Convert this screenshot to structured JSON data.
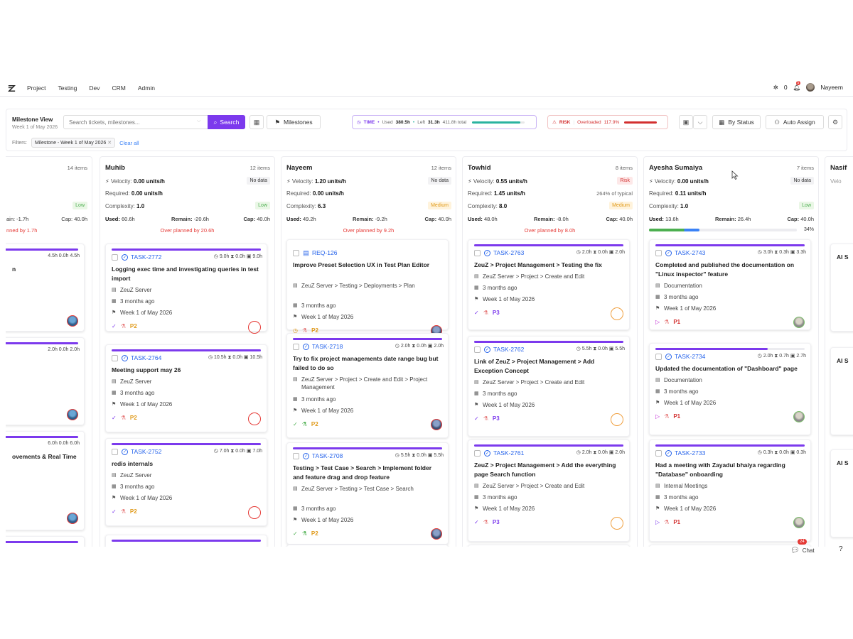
{
  "nav": {
    "menu": [
      "Project",
      "Testing",
      "Dev",
      "CRM",
      "Admin"
    ],
    "notif_count": "0",
    "bell_badge": "5",
    "user": "Nayeem"
  },
  "toolbar": {
    "title": "Milestone View",
    "subtitle": "Week 1 of May 2026",
    "search_placeholder": "Search tickets, milestones...",
    "search_label": "Search",
    "milestones_label": "Milestones",
    "time": {
      "tag": "TIME",
      "used_label": "Used",
      "used": "380.5h",
      "left_label": "Left",
      "left": "31.3h",
      "total": "411.8h total",
      "progress": 0.92
    },
    "risk": {
      "tag": "RISK",
      "label": "Overloaded",
      "value": "117.9%"
    },
    "by_status": "By Status",
    "auto_assign": "Auto Assign",
    "filters_label": "Filters:",
    "filter_chip": "Milestone - Week 1 of May 2026",
    "clear_all": "Clear all"
  },
  "columns": [
    {
      "name": "",
      "count": "14 items",
      "remain": "ain: -1.7h",
      "cap": "Cap: 40.0h",
      "level": "Low",
      "over": "nned by 1.7h",
      "cards": [
        {
          "hrs": "4.5h  0.0h  4.5h",
          "title": "n",
          "avatar": "b"
        },
        {
          "hrs": "2.0h  0.0h  2.0h",
          "title": "",
          "avatar": "b"
        },
        {
          "hrs": "6.0h  0.0h  6.0h",
          "title": "ovements & Real Time",
          "avatar": "b"
        }
      ]
    },
    {
      "name": "Muhib",
      "count": "12 items",
      "velocity": "0.00 units/h",
      "nodata": "No data",
      "required": "0.00 units/h",
      "complexity": "1.0",
      "level": "Low",
      "used": "60.6h",
      "remain": "-20.6h",
      "cap": "40.0h",
      "over": "Over planned by 20.6h",
      "cards": [
        {
          "id": "TASK-2772",
          "hrs": "9.0h  0.0h  9.0h",
          "title": "Logging exec time and investigating queries in test import",
          "project": "ZeuZ Server",
          "ago": "3 months ago",
          "week": "Week 1 of May 2026",
          "pri": "P2"
        },
        {
          "id": "TASK-2764",
          "hrs": "10.5h  0.0h  10.5h",
          "title": "Meeting support may 26",
          "project": "ZeuZ Server",
          "ago": "3 months ago",
          "week": "Week 1 of May 2026",
          "pri": "P2"
        },
        {
          "id": "TASK-2752",
          "hrs": "7.0h  0.0h  7.0h",
          "title": "redis internals",
          "project": "ZeuZ Server",
          "ago": "3 months ago",
          "week": "Week 1 of May 2026",
          "pri": "P2"
        }
      ]
    },
    {
      "name": "Nayeem",
      "count": "12 items",
      "velocity": "1.20 units/h",
      "nodata": "No data",
      "required": "0.00 units/h",
      "complexity": "6.3",
      "level": "Medium",
      "used": "49.2h",
      "remain": "-9.2h",
      "cap": "40.0h",
      "over": "Over planned by 9.2h",
      "cards": [
        {
          "id": "REQ-126",
          "hrs": "",
          "title": "Improve Preset Selection UX in Test Plan Editor",
          "project": "ZeuZ Server > Testing > Deployments > Plan",
          "ago": "3 months ago",
          "week": "Week 1 of May 2026",
          "pri": "P2"
        },
        {
          "id": "TASK-2718",
          "hrs": "2.0h  0.0h  2.0h",
          "title": "Try to fix project managements date range bug but failed to do so",
          "project": "ZeuZ Server > Project > Create and Edit > Project Management",
          "ago": "3 months ago",
          "week": "Week 1 of May 2026",
          "pri": "P2"
        },
        {
          "id": "TASK-2708",
          "hrs": "5.5h  0.0h  5.5h",
          "title": "Testing > Test Case > Search > Implement folder and feature drag and drop feature",
          "project": "ZeuZ Server > Testing > Test Case > Search",
          "ago": "3 months ago",
          "week": "Week 1 of May 2026",
          "pri": "P2"
        }
      ]
    },
    {
      "name": "Towhid",
      "count": "8 items",
      "velocity": "0.55 units/h",
      "nodata": "Risk",
      "required": "1.45 units/h",
      "typical": "264% of typical",
      "complexity": "8.0",
      "level": "Medium",
      "used": "48.0h",
      "remain": "-8.0h",
      "cap": "40.0h",
      "over": "Over planned by 8.0h",
      "cards": [
        {
          "id": "TASK-2763",
          "hrs": "2.0h  0.0h  2.0h",
          "title": "ZeuZ > Project Management > Testing the fix",
          "project": "ZeuZ Server > Project > Create and Edit",
          "ago": "3 months ago",
          "week": "Week 1 of May 2026",
          "pri": "P3"
        },
        {
          "id": "TASK-2762",
          "hrs": "5.5h  0.0h  5.5h",
          "title": "Link of ZeuZ > Project Management > Add Exception Concept",
          "project": "ZeuZ Server > Project > Create and Edit",
          "ago": "3 months ago",
          "week": "Week 1 of May 2026",
          "pri": "P3"
        },
        {
          "id": "TASK-2761",
          "hrs": "2.0h  0.0h  2.0h",
          "title": "ZeuZ > Project Management > Add the everything page Search function",
          "project": "ZeuZ Server > Project > Create and Edit",
          "ago": "3 months ago",
          "week": "Week 1 of May 2026",
          "pri": "P3"
        }
      ]
    },
    {
      "name": "Ayesha Sumaiya",
      "count": "7 items",
      "velocity": "0.00 units/h",
      "nodata": "No data",
      "required": "0.11 units/h",
      "complexity": "1.0",
      "level": "Low",
      "used": "13.6h",
      "remain": "26.4h",
      "cap": "40.0h",
      "progress_pct": "34%",
      "progress": 0.34,
      "cards": [
        {
          "id": "TASK-2743",
          "hrs": "3.0h  0.3h  3.3h",
          "title": "Completed and published the documentation on \"Linux inspector\" feature",
          "project": "Documentation",
          "ago": "3 months ago",
          "week": "Week 1 of May 2026",
          "pri": "P1"
        },
        {
          "id": "TASK-2734",
          "hrs": "2.0h  0.7h  2.7h",
          "title": "Updated the documentation of \"Dashboard\" page",
          "project": "Documentation",
          "ago": "3 months ago",
          "week": "Week 1 of May 2026",
          "pri": "P1",
          "bar": 0.75
        },
        {
          "id": "TASK-2733",
          "hrs": "0.3h  0.0h  0.3h",
          "title": "Had a meeting with Zayadul bhaiya regarding \"Database\" onboarding",
          "project": "Internal Meetings",
          "ago": "3 months ago",
          "week": "Week 1 of May 2026",
          "pri": "P1"
        }
      ]
    },
    {
      "name": "Nasif",
      "velocity": "Velo",
      "cards": [
        {
          "title": "AI S"
        },
        {
          "title": "AI S"
        },
        {
          "title": "AI S"
        }
      ]
    }
  ],
  "labels": {
    "velocity": "Velocity:",
    "required": "Required:",
    "complexity": "Complexity:",
    "used": "Used:",
    "remain": "Remain:",
    "cap": "Cap:"
  },
  "chat": {
    "label": "Chat",
    "badge": "24"
  },
  "help": "?"
}
